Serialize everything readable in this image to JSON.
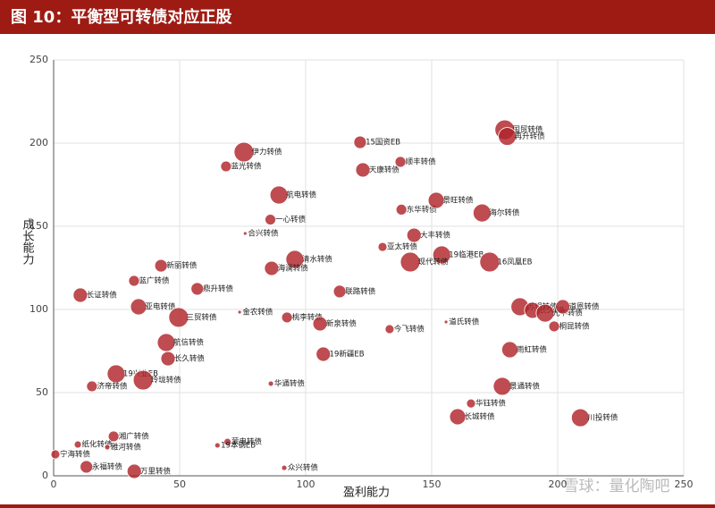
{
  "chart_data": {
    "type": "scatter",
    "title": "图 10：平衡型可转债对应正股",
    "xlabel": "盈利能力",
    "ylabel": "成长能力",
    "watermark": "雪球：量化陶吧",
    "color": "#b0242a",
    "xlim": [
      0,
      250
    ],
    "ylim": [
      0,
      250
    ],
    "xticks": [
      0,
      50,
      100,
      150,
      200,
      250
    ],
    "yticks": [
      0,
      50,
      100,
      150,
      200,
      250
    ],
    "grid": true,
    "labels": [
      "15国资EB",
      "伊力转债",
      "蓝光转债",
      "天康转债",
      "顺丰转债",
      "国贸转债",
      "再升转债",
      "航电转债",
      "一心转债",
      "合兴转债",
      "东华转债",
      "景旺转债",
      "海尔转债",
      "大丰转债",
      "亚太转债",
      "19临港EB",
      "现代转债",
      "16凤凰EB",
      "清水转债",
      "海澜转债",
      "新丽转债",
      "蓝广转债",
      "鼎升转债",
      "联路转债",
      "长证转债",
      "亚电转债",
      "三贸转债",
      "金农转债",
      "桃李转债",
      "新泉转债",
      "今飞转债",
      "道氏转债",
      "苏银转债",
      "长久EB",
      "光华转债",
      "道恩转债",
      "桐昆转债",
      "航信转债",
      "长久转债",
      "19新疆EB",
      "雨虹转债",
      "19兴业EB",
      "玲珑转债",
      "华通转债",
      "济帝转债",
      "景通转债",
      "华钰转债",
      "长城转债",
      "川投转债",
      "湘广转债",
      "蒙电转债",
      "19本钢EB",
      "纸化转债",
      "雅河转债",
      "宁海转债",
      "永福转债",
      "万里转债",
      "众兴转债"
    ],
    "x": [
      121.6,
      75.5,
      68.4,
      122.7,
      137.6,
      179,
      180,
      89.4,
      86,
      76,
      138,
      151.8,
      170,
      143,
      130.5,
      154,
      141.5,
      173,
      95.7,
      86.5,
      42.6,
      31.9,
      57,
      113.5,
      10.6,
      33.7,
      49.6,
      73.8,
      92.6,
      105.7,
      133.3,
      155.7,
      185,
      190,
      195,
      202,
      198.6,
      44.7,
      45.4,
      107,
      181,
      24.8,
      35.5,
      86.2,
      15.2,
      178,
      165.6,
      160.3,
      209,
      23.8,
      69,
      65,
      9.6,
      21.3,
      0.7,
      13,
      32,
      91.5
    ],
    "values": [
      200.5,
      194.6,
      186,
      183.9,
      188.7,
      208,
      204,
      168.8,
      154,
      145.7,
      160,
      165.6,
      158,
      144.6,
      137.6,
      132.8,
      128.5,
      128.5,
      130.1,
      124.7,
      126.3,
      117.2,
      112.4,
      110.8,
      108.6,
      101.6,
      95.2,
      98.4,
      95.2,
      91.4,
      88.2,
      92.5,
      101.6,
      99.5,
      97.8,
      101.6,
      89.8,
      80.1,
      70.4,
      73.1,
      75.8,
      61.3,
      57.5,
      55.4,
      53.8,
      53.8,
      43.5,
      35.5,
      34.9,
      23.7,
      20.4,
      18.3,
      18.8,
      17.2,
      12.9,
      5.4,
      2.7,
      4.8
    ],
    "sizes": [
      7,
      11,
      6,
      8,
      6,
      11,
      10,
      10,
      6,
      2,
      6,
      9,
      10,
      8,
      5,
      10,
      11,
      11,
      10,
      8,
      7,
      6,
      7,
      7,
      8,
      9,
      11,
      2,
      6,
      8,
      5,
      2,
      10,
      9,
      10,
      8,
      6,
      10,
      8,
      8,
      9,
      10,
      11,
      3,
      6,
      10,
      5,
      9,
      10,
      6,
      4,
      3,
      4,
      3,
      5,
      7,
      8,
      3
    ]
  }
}
